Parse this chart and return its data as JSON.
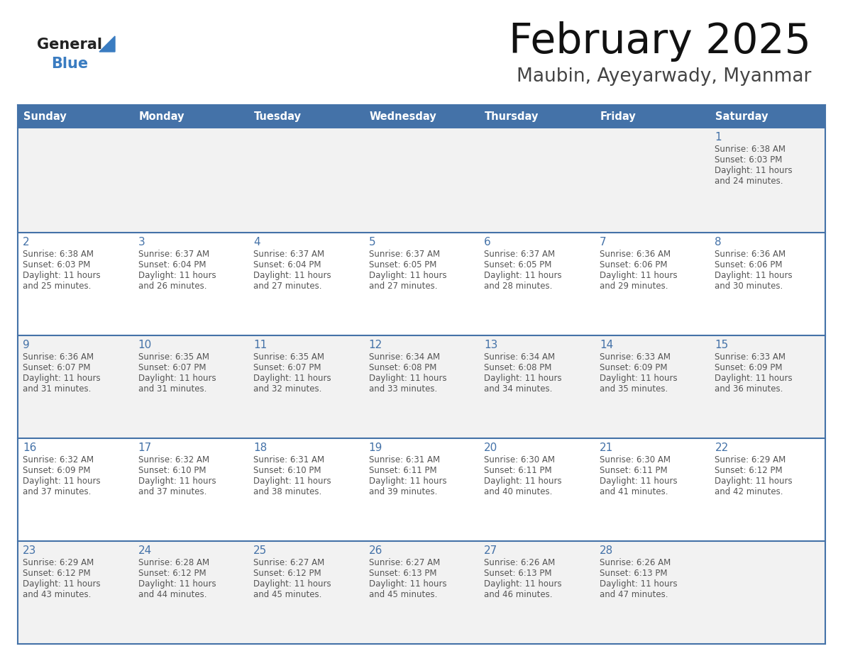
{
  "title": "February 2025",
  "subtitle": "Maubin, Ayeyarwady, Myanmar",
  "days_of_week": [
    "Sunday",
    "Monday",
    "Tuesday",
    "Wednesday",
    "Thursday",
    "Friday",
    "Saturday"
  ],
  "header_bg": "#4472A8",
  "header_text": "#FFFFFF",
  "row_bg_light": "#F2F2F2",
  "row_bg_white": "#FFFFFF",
  "cell_border": "#4472A8",
  "day_num_color": "#4472A8",
  "text_color": "#555555",
  "logo_general_color": "#222222",
  "logo_blue_color": "#3A7CC1",
  "calendar_data": {
    "1": {
      "sunrise": "6:38 AM",
      "sunset": "6:03 PM",
      "daylight": "11 hours and 24 minutes."
    },
    "2": {
      "sunrise": "6:38 AM",
      "sunset": "6:03 PM",
      "daylight": "11 hours and 25 minutes."
    },
    "3": {
      "sunrise": "6:37 AM",
      "sunset": "6:04 PM",
      "daylight": "11 hours and 26 minutes."
    },
    "4": {
      "sunrise": "6:37 AM",
      "sunset": "6:04 PM",
      "daylight": "11 hours and 27 minutes."
    },
    "5": {
      "sunrise": "6:37 AM",
      "sunset": "6:05 PM",
      "daylight": "11 hours and 27 minutes."
    },
    "6": {
      "sunrise": "6:37 AM",
      "sunset": "6:05 PM",
      "daylight": "11 hours and 28 minutes."
    },
    "7": {
      "sunrise": "6:36 AM",
      "sunset": "6:06 PM",
      "daylight": "11 hours and 29 minutes."
    },
    "8": {
      "sunrise": "6:36 AM",
      "sunset": "6:06 PM",
      "daylight": "11 hours and 30 minutes."
    },
    "9": {
      "sunrise": "6:36 AM",
      "sunset": "6:07 PM",
      "daylight": "11 hours and 31 minutes."
    },
    "10": {
      "sunrise": "6:35 AM",
      "sunset": "6:07 PM",
      "daylight": "11 hours and 31 minutes."
    },
    "11": {
      "sunrise": "6:35 AM",
      "sunset": "6:07 PM",
      "daylight": "11 hours and 32 minutes."
    },
    "12": {
      "sunrise": "6:34 AM",
      "sunset": "6:08 PM",
      "daylight": "11 hours and 33 minutes."
    },
    "13": {
      "sunrise": "6:34 AM",
      "sunset": "6:08 PM",
      "daylight": "11 hours and 34 minutes."
    },
    "14": {
      "sunrise": "6:33 AM",
      "sunset": "6:09 PM",
      "daylight": "11 hours and 35 minutes."
    },
    "15": {
      "sunrise": "6:33 AM",
      "sunset": "6:09 PM",
      "daylight": "11 hours and 36 minutes."
    },
    "16": {
      "sunrise": "6:32 AM",
      "sunset": "6:09 PM",
      "daylight": "11 hours and 37 minutes."
    },
    "17": {
      "sunrise": "6:32 AM",
      "sunset": "6:10 PM",
      "daylight": "11 hours and 37 minutes."
    },
    "18": {
      "sunrise": "6:31 AM",
      "sunset": "6:10 PM",
      "daylight": "11 hours and 38 minutes."
    },
    "19": {
      "sunrise": "6:31 AM",
      "sunset": "6:11 PM",
      "daylight": "11 hours and 39 minutes."
    },
    "20": {
      "sunrise": "6:30 AM",
      "sunset": "6:11 PM",
      "daylight": "11 hours and 40 minutes."
    },
    "21": {
      "sunrise": "6:30 AM",
      "sunset": "6:11 PM",
      "daylight": "11 hours and 41 minutes."
    },
    "22": {
      "sunrise": "6:29 AM",
      "sunset": "6:12 PM",
      "daylight": "11 hours and 42 minutes."
    },
    "23": {
      "sunrise": "6:29 AM",
      "sunset": "6:12 PM",
      "daylight": "11 hours and 43 minutes."
    },
    "24": {
      "sunrise": "6:28 AM",
      "sunset": "6:12 PM",
      "daylight": "11 hours and 44 minutes."
    },
    "25": {
      "sunrise": "6:27 AM",
      "sunset": "6:12 PM",
      "daylight": "11 hours and 45 minutes."
    },
    "26": {
      "sunrise": "6:27 AM",
      "sunset": "6:13 PM",
      "daylight": "11 hours and 45 minutes."
    },
    "27": {
      "sunrise": "6:26 AM",
      "sunset": "6:13 PM",
      "daylight": "11 hours and 46 minutes."
    },
    "28": {
      "sunrise": "6:26 AM",
      "sunset": "6:13 PM",
      "daylight": "11 hours and 47 minutes."
    }
  },
  "week_layout": [
    [
      null,
      null,
      null,
      null,
      null,
      null,
      1
    ],
    [
      2,
      3,
      4,
      5,
      6,
      7,
      8
    ],
    [
      9,
      10,
      11,
      12,
      13,
      14,
      15
    ],
    [
      16,
      17,
      18,
      19,
      20,
      21,
      22
    ],
    [
      23,
      24,
      25,
      26,
      27,
      28,
      null
    ]
  ]
}
